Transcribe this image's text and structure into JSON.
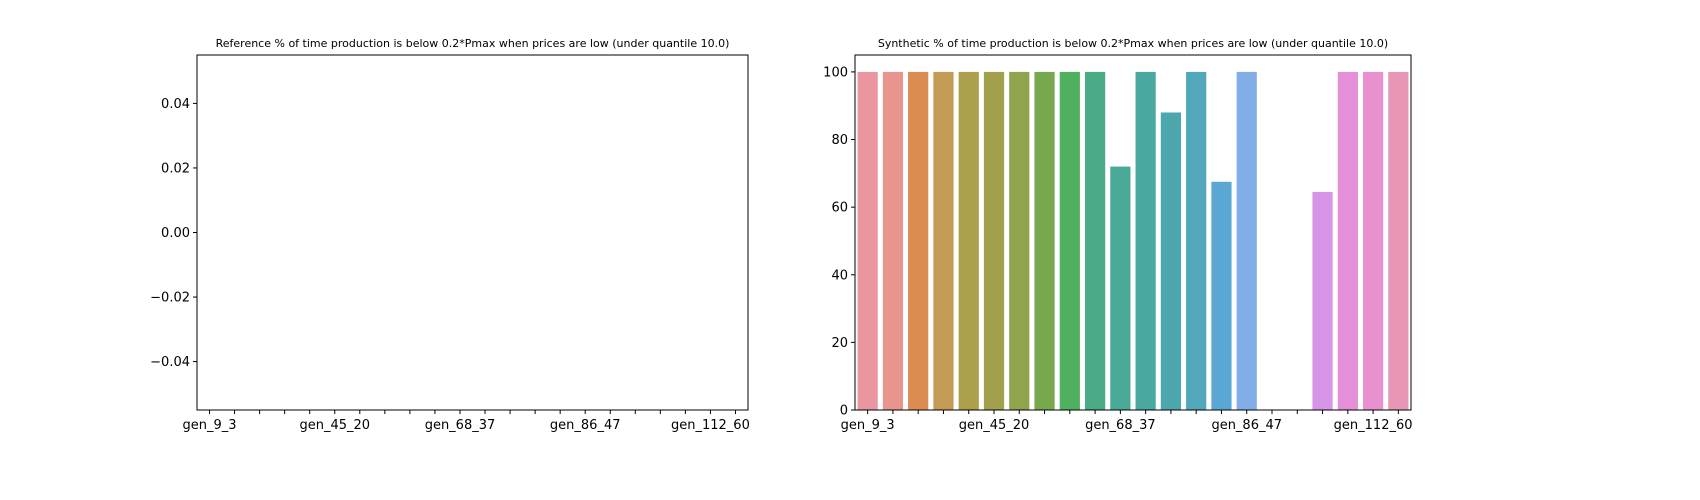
{
  "chart_data": [
    {
      "type": "bar",
      "title": "Reference % of time production is below 0.2*Pmax when prices are low (under quantile 10.0)",
      "categories": [
        "gen_9_3",
        null,
        null,
        null,
        null,
        "gen_45_20",
        null,
        null,
        null,
        null,
        "gen_68_37",
        null,
        null,
        null,
        null,
        "gen_86_47",
        null,
        null,
        null,
        null,
        "gen_112_60",
        null
      ],
      "values": [
        null,
        null,
        null,
        null,
        null,
        null,
        null,
        null,
        null,
        null,
        null,
        null,
        null,
        null,
        null,
        null,
        null,
        null,
        null,
        null,
        null,
        null
      ],
      "ylim": [
        -0.055,
        0.055
      ],
      "yticks": [
        {
          "value": -0.04,
          "label": "−0.04"
        },
        {
          "value": -0.02,
          "label": "−0.02"
        },
        {
          "value": 0,
          "label": "0.00"
        },
        {
          "value": 0.02,
          "label": "0.02"
        },
        {
          "value": 0.04,
          "label": "0.04"
        }
      ]
    },
    {
      "type": "bar",
      "title": "Synthetic % of time production is below 0.2*Pmax when prices are low (under quantile 10.0)",
      "categories": [
        "gen_9_3",
        null,
        null,
        null,
        null,
        "gen_45_20",
        null,
        null,
        null,
        null,
        "gen_68_37",
        null,
        null,
        null,
        null,
        "gen_86_47",
        null,
        null,
        null,
        null,
        "gen_112_60",
        null
      ],
      "values": [
        100,
        100,
        100,
        100,
        100,
        100,
        100,
        100,
        100,
        100,
        72,
        100,
        88,
        100,
        67.5,
        100,
        null,
        null,
        64.5,
        100,
        100,
        100
      ],
      "colors": [
        "#ea96a0",
        "#e8958d",
        "#db8c52",
        "#c49b55",
        "#aca04d",
        "#a0a04d",
        "#8fa44d",
        "#77a84d",
        "#4fb060",
        "#4aab86",
        "#4aa997",
        "#49a9a1",
        "#4da8ae",
        "#52a7ba",
        "#5aa7d4",
        "#82aee8",
        "#a8a0ec",
        "#c29bee",
        "#d895e8",
        "#e68fd9",
        "#e990cf",
        "#e896b6"
      ],
      "ylim": [
        0,
        105
      ],
      "yticks": [
        0,
        20,
        40,
        60,
        80,
        100
      ]
    }
  ]
}
